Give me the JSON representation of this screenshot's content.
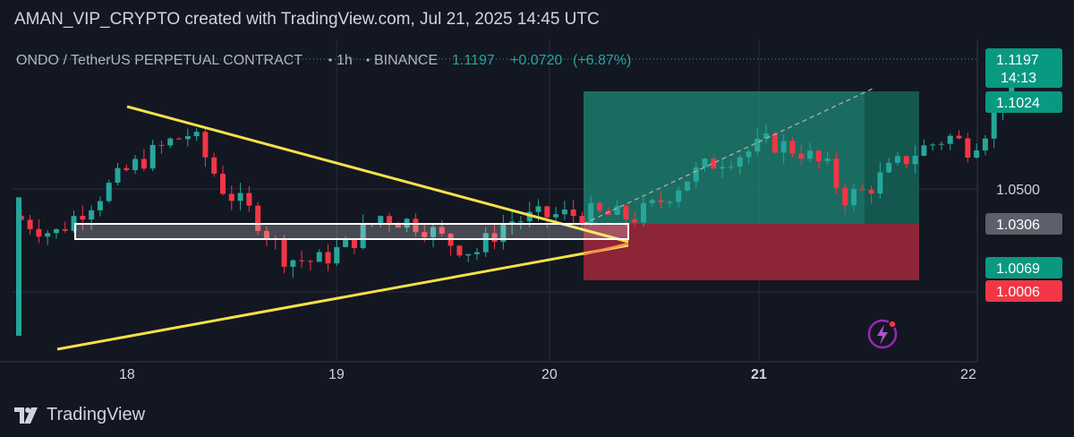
{
  "header": {
    "caption": "AMAN_VIP_CRYPTO created with TradingView.com, Jul 21, 2025 14:45 UTC"
  },
  "footer": {
    "brand": "TradingView"
  },
  "colors": {
    "background": "#131722",
    "up": "#26a69a",
    "down": "#f23645",
    "pattern": "#f5e04a",
    "profit_zone": "#1f8a76",
    "loss_zone": "#a1283b",
    "grid": "#2a2e39"
  },
  "chart_data": {
    "type": "candlestick",
    "symbol_legend": {
      "symbol": "ONDO / TetherUS PERPETUAL CONTRACT",
      "interval": "1h",
      "exchange": "BINANCE",
      "last": "1.1197",
      "change": "+0.0720",
      "change_pct": "(+6.87%)"
    },
    "x_ticks": [
      "18",
      "19",
      "20",
      "21",
      "22"
    ],
    "y_ticks": [
      "1.0500"
    ],
    "price_labels": [
      {
        "value": "1.1197",
        "countdown": "14:13",
        "kind": "last",
        "color": "#089981"
      },
      {
        "value": "1.1024",
        "kind": "take-profit",
        "color": "#089981"
      },
      {
        "value": "1.0306",
        "kind": "entry",
        "color": "#5d606b"
      },
      {
        "value": "1.0069",
        "kind": "level",
        "color": "#089981"
      },
      {
        "value": "1.0006",
        "kind": "stop-loss",
        "color": "#f23645"
      }
    ],
    "position": {
      "entry": 1.0306,
      "target": 1.1024,
      "stop": 1.0006,
      "direction": "long"
    },
    "patterns": [
      "symmetrical-triangle",
      "horizontal-range-box"
    ],
    "close_path": [
      {
        "t": 0.0,
        "p": 1.035
      },
      {
        "t": 0.2,
        "p": 1.025
      },
      {
        "t": 0.35,
        "p": 1.04
      },
      {
        "t": 0.55,
        "p": 1.06
      },
      {
        "t": 0.75,
        "p": 1.075
      },
      {
        "t": 0.85,
        "p": 1.08
      },
      {
        "t": 1.0,
        "p": 1.05
      },
      {
        "t": 1.15,
        "p": 1.035
      },
      {
        "t": 1.3,
        "p": 1.012
      },
      {
        "t": 1.45,
        "p": 1.01
      },
      {
        "t": 1.6,
        "p": 1.02
      },
      {
        "t": 1.75,
        "p": 1.035
      },
      {
        "t": 1.95,
        "p": 1.03
      },
      {
        "t": 2.05,
        "p": 1.022
      },
      {
        "t": 2.2,
        "p": 1.015
      },
      {
        "t": 2.35,
        "p": 1.032
      },
      {
        "t": 2.55,
        "p": 1.035
      },
      {
        "t": 2.75,
        "p": 1.036
      },
      {
        "t": 2.95,
        "p": 1.034
      },
      {
        "t": 3.05,
        "p": 1.04
      },
      {
        "t": 3.2,
        "p": 1.055
      },
      {
        "t": 3.35,
        "p": 1.065
      },
      {
        "t": 3.5,
        "p": 1.07
      },
      {
        "t": 3.6,
        "p": 1.075
      },
      {
        "t": 3.75,
        "p": 1.07
      },
      {
        "t": 3.88,
        "p": 1.06
      },
      {
        "t": 3.95,
        "p": 1.045
      },
      {
        "t": 4.05,
        "p": 1.048
      },
      {
        "t": 4.15,
        "p": 1.058
      },
      {
        "t": 4.3,
        "p": 1.07
      },
      {
        "t": 4.45,
        "p": 1.078
      },
      {
        "t": 4.55,
        "p": 1.072
      },
      {
        "t": 4.65,
        "p": 1.085
      },
      {
        "t": 4.72,
        "p": 1.105
      },
      {
        "t": 4.78,
        "p": 1.12
      }
    ]
  }
}
